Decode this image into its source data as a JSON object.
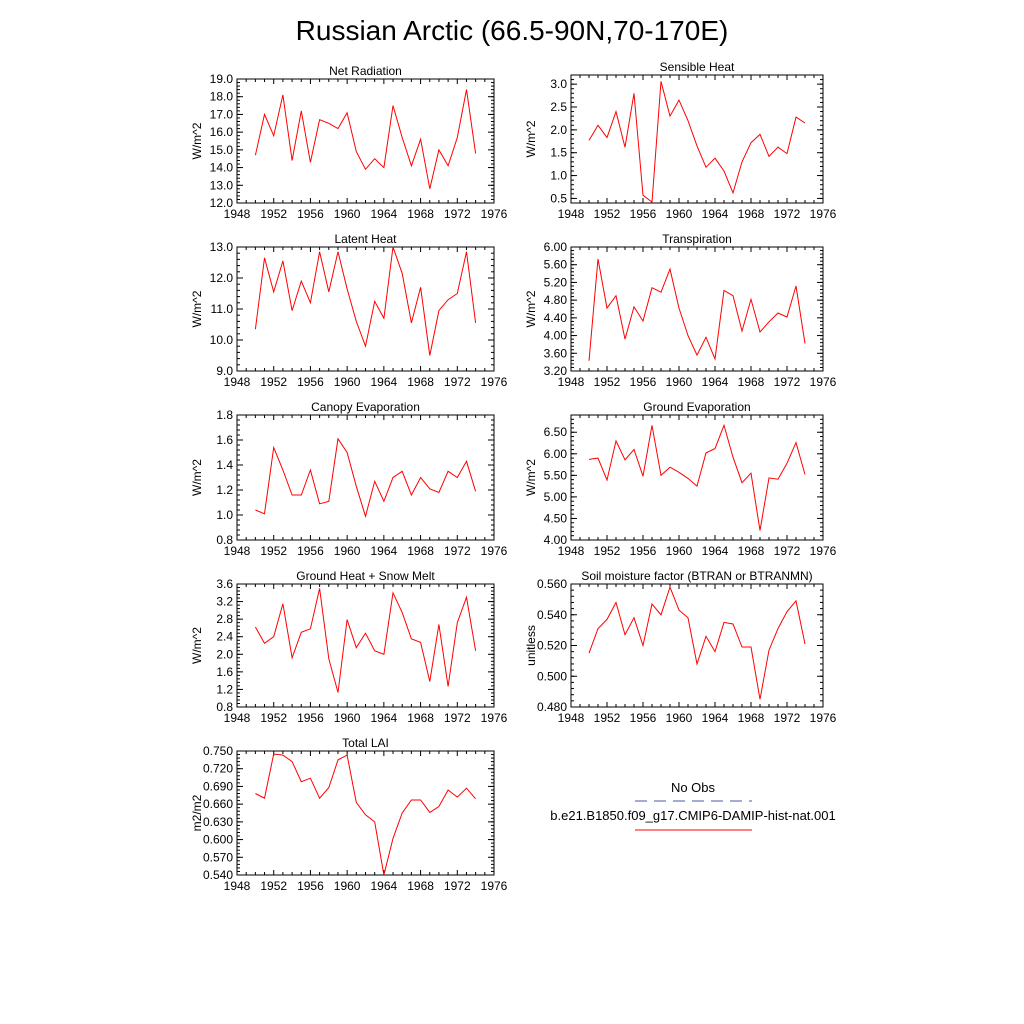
{
  "figure": {
    "title": "Russian Arctic (66.5-90N,70-170E)"
  },
  "colors": {
    "model_line": "#ff0000",
    "obs_line": "#4a5aa8",
    "axis": "#000000"
  },
  "legend": {
    "obs_label": "No Obs",
    "model_label": "b.e21.B1850.f09_g17.CMIP6-DAMIP-hist-nat.001"
  },
  "chart_data": [
    {
      "type": "line",
      "title": "Net Radiation",
      "ylabel": "W/m^2",
      "xlim": [
        1948,
        1976
      ],
      "ylim": [
        12.0,
        19.0
      ],
      "xticks": [
        1948,
        1952,
        1956,
        1960,
        1964,
        1968,
        1972,
        1976
      ],
      "yticks": [
        "12.0",
        "13.0",
        "14.0",
        "15.0",
        "16.0",
        "17.0",
        "18.0",
        "19.0"
      ],
      "series": [
        {
          "x": [
            1950,
            1951,
            1952,
            1953,
            1954,
            1955,
            1956,
            1957,
            1958,
            1959,
            1960,
            1961,
            1962,
            1963,
            1964,
            1965,
            1966,
            1967,
            1968,
            1969,
            1970,
            1971,
            1972,
            1973,
            1974
          ],
          "values": [
            14.7,
            17.0,
            15.8,
            18.1,
            14.4,
            17.2,
            14.3,
            16.7,
            16.5,
            16.2,
            17.1,
            14.9,
            13.9,
            14.5,
            14.0,
            17.5,
            15.7,
            14.1,
            15.6,
            12.8,
            15.0,
            14.1,
            15.7,
            18.4,
            14.8
          ]
        }
      ]
    },
    {
      "type": "line",
      "title": "Sensible Heat",
      "ylabel": "W/m^2",
      "xlim": [
        1948,
        1976
      ],
      "ylim": [
        0.4,
        3.2
      ],
      "xticks": [
        1948,
        1952,
        1956,
        1960,
        1964,
        1968,
        1972,
        1976
      ],
      "yticks": [
        "0.5",
        "1.0",
        "1.5",
        "2.0",
        "2.5",
        "3.0"
      ],
      "series": [
        {
          "x": [
            1950,
            1951,
            1952,
            1953,
            1954,
            1955,
            1956,
            1957,
            1958,
            1959,
            1960,
            1961,
            1962,
            1963,
            1964,
            1965,
            1966,
            1967,
            1968,
            1969,
            1970,
            1971,
            1972,
            1973,
            1974
          ],
          "values": [
            1.77,
            2.1,
            1.83,
            2.4,
            1.62,
            2.8,
            0.57,
            0.42,
            3.06,
            2.3,
            2.65,
            2.2,
            1.65,
            1.18,
            1.38,
            1.1,
            0.62,
            1.3,
            1.72,
            1.9,
            1.42,
            1.62,
            1.48,
            2.28,
            2.15
          ]
        }
      ]
    },
    {
      "type": "line",
      "title": "Latent Heat",
      "ylabel": "W/m^2",
      "xlim": [
        1948,
        1976
      ],
      "ylim": [
        9.0,
        13.0
      ],
      "xticks": [
        1948,
        1952,
        1956,
        1960,
        1964,
        1968,
        1972,
        1976
      ],
      "yticks": [
        "9.0",
        "10.0",
        "11.0",
        "12.0",
        "13.0"
      ],
      "series": [
        {
          "x": [
            1950,
            1951,
            1952,
            1953,
            1954,
            1955,
            1956,
            1957,
            1958,
            1959,
            1960,
            1961,
            1962,
            1963,
            1964,
            1965,
            1966,
            1967,
            1968,
            1969,
            1970,
            1971,
            1972,
            1973,
            1974
          ],
          "values": [
            10.35,
            12.65,
            11.55,
            12.55,
            10.95,
            11.9,
            11.2,
            12.85,
            11.55,
            12.85,
            11.65,
            10.6,
            9.8,
            11.25,
            10.7,
            13.0,
            12.15,
            10.55,
            11.7,
            9.5,
            10.95,
            11.3,
            11.5,
            12.85,
            10.55
          ]
        }
      ]
    },
    {
      "type": "line",
      "title": "Transpiration",
      "ylabel": "W/m^2",
      "xlim": [
        1948,
        1976
      ],
      "ylim": [
        3.2,
        6.0
      ],
      "xticks": [
        1948,
        1952,
        1956,
        1960,
        1964,
        1968,
        1972,
        1976
      ],
      "yticks": [
        "3.20",
        "3.60",
        "4.00",
        "4.40",
        "4.80",
        "5.20",
        "5.60",
        "6.00"
      ],
      "series": [
        {
          "x": [
            1950,
            1951,
            1952,
            1953,
            1954,
            1955,
            1956,
            1957,
            1958,
            1959,
            1960,
            1961,
            1962,
            1963,
            1964,
            1965,
            1966,
            1967,
            1968,
            1969,
            1970,
            1971,
            1972,
            1973,
            1974
          ],
          "values": [
            3.43,
            5.73,
            4.62,
            4.9,
            3.92,
            4.65,
            4.33,
            5.08,
            4.98,
            5.5,
            4.62,
            4.0,
            3.56,
            3.96,
            3.47,
            5.02,
            4.9,
            4.1,
            4.82,
            4.08,
            4.31,
            4.51,
            4.42,
            5.12,
            3.82
          ]
        }
      ]
    },
    {
      "type": "line",
      "title": "Canopy Evaporation",
      "ylabel": "W/m^2",
      "xlim": [
        1948,
        1976
      ],
      "ylim": [
        0.8,
        1.8
      ],
      "xticks": [
        1948,
        1952,
        1956,
        1960,
        1964,
        1968,
        1972,
        1976
      ],
      "yticks": [
        "0.8",
        "1.0",
        "1.2",
        "1.4",
        "1.6",
        "1.8"
      ],
      "series": [
        {
          "x": [
            1950,
            1951,
            1952,
            1953,
            1954,
            1955,
            1956,
            1957,
            1958,
            1959,
            1960,
            1961,
            1962,
            1963,
            1964,
            1965,
            1966,
            1967,
            1968,
            1969,
            1970,
            1971,
            1972,
            1973,
            1974
          ],
          "values": [
            1.04,
            1.01,
            1.54,
            1.36,
            1.16,
            1.16,
            1.36,
            1.09,
            1.11,
            1.61,
            1.5,
            1.23,
            0.99,
            1.27,
            1.11,
            1.3,
            1.35,
            1.16,
            1.3,
            1.21,
            1.18,
            1.35,
            1.3,
            1.43,
            1.19
          ]
        }
      ]
    },
    {
      "type": "line",
      "title": "Ground Evaporation",
      "ylabel": "W/m^2",
      "xlim": [
        1948,
        1976
      ],
      "ylim": [
        4.0,
        6.9
      ],
      "xticks": [
        1948,
        1952,
        1956,
        1960,
        1964,
        1968,
        1972,
        1976
      ],
      "yticks": [
        "4.00",
        "4.50",
        "5.00",
        "5.50",
        "6.00",
        "6.50"
      ],
      "series": [
        {
          "x": [
            1950,
            1951,
            1952,
            1953,
            1954,
            1955,
            1956,
            1957,
            1958,
            1959,
            1960,
            1961,
            1962,
            1963,
            1964,
            1965,
            1966,
            1967,
            1968,
            1969,
            1970,
            1971,
            1972,
            1973,
            1974
          ],
          "values": [
            5.87,
            5.9,
            5.39,
            6.3,
            5.86,
            6.1,
            5.48,
            6.66,
            5.5,
            5.69,
            5.57,
            5.43,
            5.25,
            6.02,
            6.12,
            6.66,
            5.92,
            5.33,
            5.55,
            4.22,
            5.44,
            5.41,
            5.78,
            6.26,
            5.52
          ]
        }
      ]
    },
    {
      "type": "line",
      "title": "Ground Heat + Snow Melt",
      "ylabel": "W/m^2",
      "xlim": [
        1948,
        1976
      ],
      "ylim": [
        0.8,
        3.6
      ],
      "xticks": [
        1948,
        1952,
        1956,
        1960,
        1964,
        1968,
        1972,
        1976
      ],
      "yticks": [
        "0.8",
        "1.2",
        "1.6",
        "2.0",
        "2.4",
        "2.8",
        "3.2",
        "3.6"
      ],
      "series": [
        {
          "x": [
            1950,
            1951,
            1952,
            1953,
            1954,
            1955,
            1956,
            1957,
            1958,
            1959,
            1960,
            1961,
            1962,
            1963,
            1964,
            1965,
            1966,
            1967,
            1968,
            1969,
            1970,
            1971,
            1972,
            1973,
            1974
          ],
          "values": [
            2.62,
            2.25,
            2.4,
            3.15,
            1.92,
            2.5,
            2.58,
            3.5,
            1.9,
            1.13,
            2.79,
            2.15,
            2.48,
            2.08,
            2.0,
            3.4,
            2.95,
            2.35,
            2.27,
            1.38,
            2.68,
            1.27,
            2.72,
            3.3,
            2.08
          ]
        }
      ]
    },
    {
      "type": "line",
      "title": "Soil moisture factor (BTRAN or BTRANMN)",
      "ylabel": "unitless",
      "xlim": [
        1948,
        1976
      ],
      "ylim": [
        0.48,
        0.56
      ],
      "xticks": [
        1948,
        1952,
        1956,
        1960,
        1964,
        1968,
        1972,
        1976
      ],
      "yticks": [
        "0.480",
        "0.500",
        "0.520",
        "0.540",
        "0.560"
      ],
      "series": [
        {
          "x": [
            1950,
            1951,
            1952,
            1953,
            1954,
            1955,
            1956,
            1957,
            1958,
            1959,
            1960,
            1961,
            1962,
            1963,
            1964,
            1965,
            1966,
            1967,
            1968,
            1969,
            1970,
            1971,
            1972,
            1973,
            1974
          ],
          "values": [
            0.515,
            0.531,
            0.537,
            0.548,
            0.527,
            0.538,
            0.52,
            0.547,
            0.54,
            0.558,
            0.543,
            0.538,
            0.508,
            0.526,
            0.516,
            0.535,
            0.534,
            0.519,
            0.519,
            0.485,
            0.517,
            0.531,
            0.542,
            0.549,
            0.521
          ]
        }
      ]
    },
    {
      "type": "line",
      "title": "Total LAI",
      "ylabel": "m2/m2",
      "xlim": [
        1948,
        1976
      ],
      "ylim": [
        0.54,
        0.75
      ],
      "xticks": [
        1948,
        1952,
        1956,
        1960,
        1964,
        1968,
        1972,
        1976
      ],
      "yticks": [
        "0.540",
        "0.570",
        "0.600",
        "0.630",
        "0.660",
        "0.690",
        "0.720",
        "0.750"
      ],
      "series": [
        {
          "x": [
            1950,
            1951,
            1952,
            1953,
            1954,
            1955,
            1956,
            1957,
            1958,
            1959,
            1960,
            1961,
            1962,
            1963,
            1964,
            1965,
            1966,
            1967,
            1968,
            1969,
            1970,
            1971,
            1972,
            1973,
            1974
          ],
          "values": [
            0.678,
            0.67,
            0.745,
            0.743,
            0.732,
            0.698,
            0.704,
            0.67,
            0.688,
            0.735,
            0.743,
            0.663,
            0.642,
            0.63,
            0.54,
            0.602,
            0.645,
            0.667,
            0.667,
            0.646,
            0.656,
            0.684,
            0.672,
            0.687,
            0.669
          ]
        }
      ]
    }
  ]
}
